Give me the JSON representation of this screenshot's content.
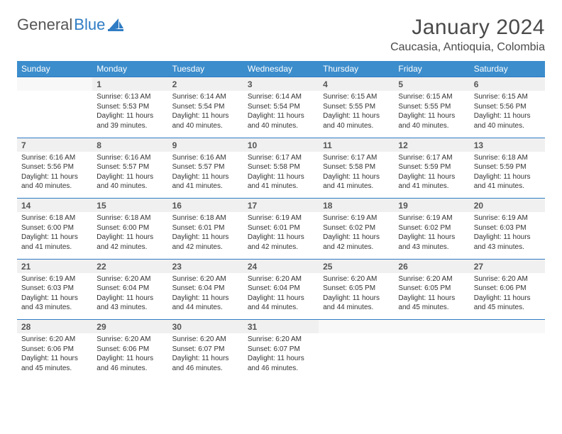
{
  "logo": {
    "text1": "General",
    "text2": "Blue"
  },
  "title": "January 2024",
  "location": "Caucasia, Antioquia, Colombia",
  "colors": {
    "header_bg": "#3c8dcc",
    "header_text": "#ffffff",
    "daynum_bg": "#f0f0f0",
    "border": "#2f7cc4",
    "logo_blue": "#2f7cc4"
  },
  "weekdays": [
    "Sunday",
    "Monday",
    "Tuesday",
    "Wednesday",
    "Thursday",
    "Friday",
    "Saturday"
  ],
  "weeks": [
    [
      null,
      {
        "n": "1",
        "sunrise": "6:13 AM",
        "sunset": "5:53 PM",
        "daylight": "11 hours and 39 minutes."
      },
      {
        "n": "2",
        "sunrise": "6:14 AM",
        "sunset": "5:54 PM",
        "daylight": "11 hours and 40 minutes."
      },
      {
        "n": "3",
        "sunrise": "6:14 AM",
        "sunset": "5:54 PM",
        "daylight": "11 hours and 40 minutes."
      },
      {
        "n": "4",
        "sunrise": "6:15 AM",
        "sunset": "5:55 PM",
        "daylight": "11 hours and 40 minutes."
      },
      {
        "n": "5",
        "sunrise": "6:15 AM",
        "sunset": "5:55 PM",
        "daylight": "11 hours and 40 minutes."
      },
      {
        "n": "6",
        "sunrise": "6:15 AM",
        "sunset": "5:56 PM",
        "daylight": "11 hours and 40 minutes."
      }
    ],
    [
      {
        "n": "7",
        "sunrise": "6:16 AM",
        "sunset": "5:56 PM",
        "daylight": "11 hours and 40 minutes."
      },
      {
        "n": "8",
        "sunrise": "6:16 AM",
        "sunset": "5:57 PM",
        "daylight": "11 hours and 40 minutes."
      },
      {
        "n": "9",
        "sunrise": "6:16 AM",
        "sunset": "5:57 PM",
        "daylight": "11 hours and 41 minutes."
      },
      {
        "n": "10",
        "sunrise": "6:17 AM",
        "sunset": "5:58 PM",
        "daylight": "11 hours and 41 minutes."
      },
      {
        "n": "11",
        "sunrise": "6:17 AM",
        "sunset": "5:58 PM",
        "daylight": "11 hours and 41 minutes."
      },
      {
        "n": "12",
        "sunrise": "6:17 AM",
        "sunset": "5:59 PM",
        "daylight": "11 hours and 41 minutes."
      },
      {
        "n": "13",
        "sunrise": "6:18 AM",
        "sunset": "5:59 PM",
        "daylight": "11 hours and 41 minutes."
      }
    ],
    [
      {
        "n": "14",
        "sunrise": "6:18 AM",
        "sunset": "6:00 PM",
        "daylight": "11 hours and 41 minutes."
      },
      {
        "n": "15",
        "sunrise": "6:18 AM",
        "sunset": "6:00 PM",
        "daylight": "11 hours and 42 minutes."
      },
      {
        "n": "16",
        "sunrise": "6:18 AM",
        "sunset": "6:01 PM",
        "daylight": "11 hours and 42 minutes."
      },
      {
        "n": "17",
        "sunrise": "6:19 AM",
        "sunset": "6:01 PM",
        "daylight": "11 hours and 42 minutes."
      },
      {
        "n": "18",
        "sunrise": "6:19 AM",
        "sunset": "6:02 PM",
        "daylight": "11 hours and 42 minutes."
      },
      {
        "n": "19",
        "sunrise": "6:19 AM",
        "sunset": "6:02 PM",
        "daylight": "11 hours and 43 minutes."
      },
      {
        "n": "20",
        "sunrise": "6:19 AM",
        "sunset": "6:03 PM",
        "daylight": "11 hours and 43 minutes."
      }
    ],
    [
      {
        "n": "21",
        "sunrise": "6:19 AM",
        "sunset": "6:03 PM",
        "daylight": "11 hours and 43 minutes."
      },
      {
        "n": "22",
        "sunrise": "6:20 AM",
        "sunset": "6:04 PM",
        "daylight": "11 hours and 43 minutes."
      },
      {
        "n": "23",
        "sunrise": "6:20 AM",
        "sunset": "6:04 PM",
        "daylight": "11 hours and 44 minutes."
      },
      {
        "n": "24",
        "sunrise": "6:20 AM",
        "sunset": "6:04 PM",
        "daylight": "11 hours and 44 minutes."
      },
      {
        "n": "25",
        "sunrise": "6:20 AM",
        "sunset": "6:05 PM",
        "daylight": "11 hours and 44 minutes."
      },
      {
        "n": "26",
        "sunrise": "6:20 AM",
        "sunset": "6:05 PM",
        "daylight": "11 hours and 45 minutes."
      },
      {
        "n": "27",
        "sunrise": "6:20 AM",
        "sunset": "6:06 PM",
        "daylight": "11 hours and 45 minutes."
      }
    ],
    [
      {
        "n": "28",
        "sunrise": "6:20 AM",
        "sunset": "6:06 PM",
        "daylight": "11 hours and 45 minutes."
      },
      {
        "n": "29",
        "sunrise": "6:20 AM",
        "sunset": "6:06 PM",
        "daylight": "11 hours and 46 minutes."
      },
      {
        "n": "30",
        "sunrise": "6:20 AM",
        "sunset": "6:07 PM",
        "daylight": "11 hours and 46 minutes."
      },
      {
        "n": "31",
        "sunrise": "6:20 AM",
        "sunset": "6:07 PM",
        "daylight": "11 hours and 46 minutes."
      },
      null,
      null,
      null
    ]
  ],
  "labels": {
    "sunrise": "Sunrise:",
    "sunset": "Sunset:",
    "daylight": "Daylight:"
  }
}
